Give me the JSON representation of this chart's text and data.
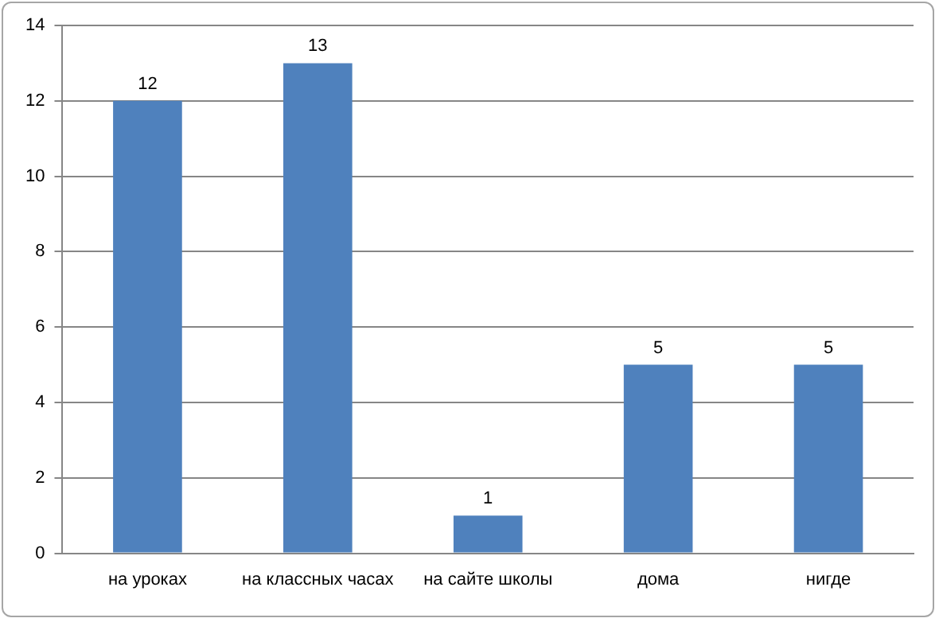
{
  "chart_data": {
    "type": "bar",
    "categories": [
      "на уроках",
      "на классных часах",
      "на сайте школы",
      "дома",
      "нигде"
    ],
    "values": [
      12,
      13,
      1,
      5,
      5
    ],
    "color": "#4f81bd",
    "ylim": [
      0,
      14
    ],
    "yticks": [
      0,
      2,
      4,
      6,
      8,
      10,
      12,
      14
    ],
    "grid": "y",
    "data_labels": true
  }
}
